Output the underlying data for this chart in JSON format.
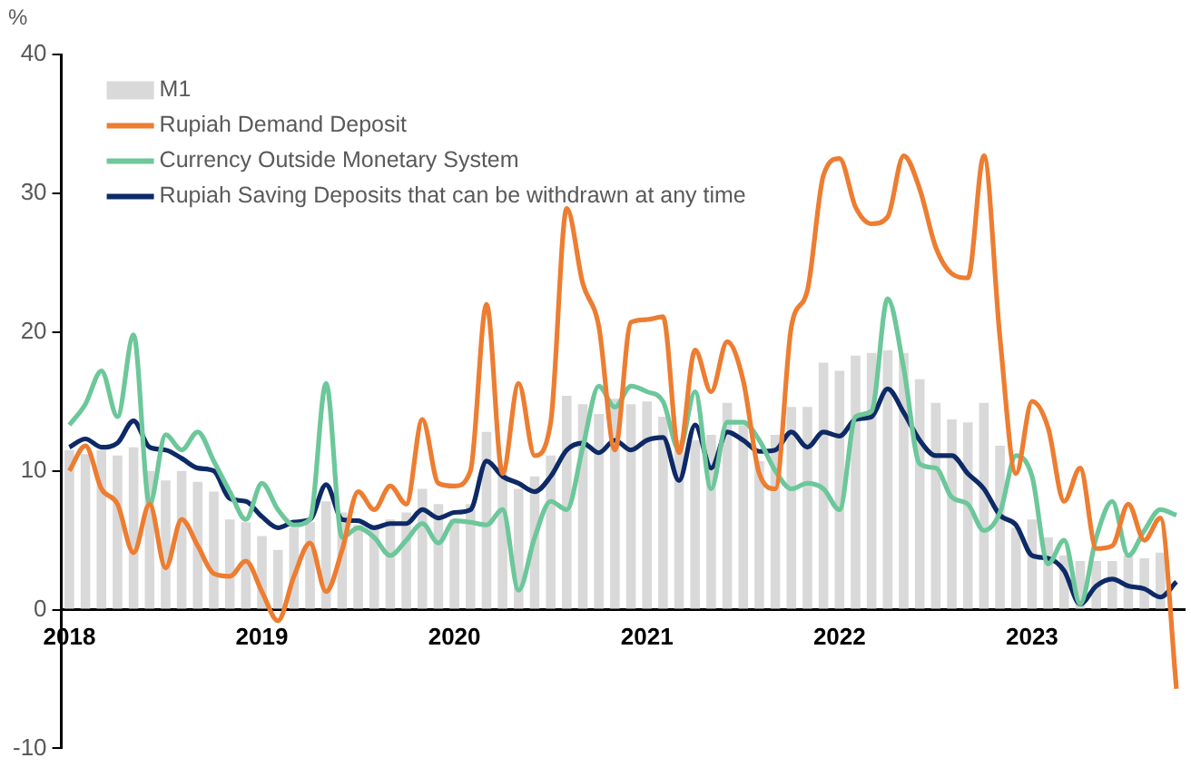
{
  "chart_data": {
    "type": "bar",
    "ylabel": "%",
    "legend": "top left",
    "grid": false,
    "categories": [
      "2018",
      null,
      null,
      null,
      null,
      null,
      null,
      null,
      null,
      null,
      null,
      null,
      "2019",
      null,
      null,
      null,
      null,
      null,
      null,
      null,
      null,
      null,
      null,
      null,
      "2020",
      null,
      null,
      null,
      null,
      null,
      null,
      null,
      null,
      null,
      null,
      null,
      "2021",
      null,
      null,
      null,
      null,
      null,
      null,
      null,
      null,
      null,
      null,
      null,
      "2022",
      null,
      null,
      null,
      null,
      null,
      null,
      null,
      null,
      null,
      null,
      null,
      "2023",
      null,
      null,
      null,
      null,
      null,
      null,
      null,
      null,
      null
    ],
    "ylim": [
      -10,
      40
    ],
    "yticks": [
      -10,
      0,
      10,
      20,
      30,
      40
    ],
    "series": [
      {
        "name": "M1",
        "color": "#d9d9d9",
        "values": [
          11.5,
          11.2,
          11.5,
          11.1,
          11.7,
          10.0,
          9.3,
          10.0,
          9.2,
          8.5,
          6.5,
          6.3,
          5.3,
          4.3,
          5.9,
          6.3,
          7.8,
          7.0,
          6.1,
          6.1,
          6.5,
          7.0,
          8.7,
          7.6,
          6.5,
          7.6,
          12.8,
          10.4,
          8.7,
          9.6,
          11.1,
          15.4,
          14.8,
          14.1,
          15.2,
          14.8,
          15.0,
          13.9,
          12.2,
          12.2,
          12.6,
          14.9,
          13.3,
          10.7,
          12.6,
          14.6,
          14.6,
          17.8,
          17.2,
          18.3,
          18.5,
          18.7,
          18.5,
          16.6,
          14.9,
          13.7,
          13.5,
          14.9,
          11.8,
          5.9,
          6.5,
          5.2,
          3.9,
          3.5,
          3.5,
          3.5,
          3.9,
          3.7,
          4.1,
          null
        ]
      },
      {
        "name": "Rupiah Demand Deposit",
        "type": "line",
        "color": "#ed7d31",
        "values": [
          10.0,
          11.8,
          8.7,
          7.6,
          4.1,
          7.6,
          3.0,
          6.5,
          4.6,
          2.6,
          2.4,
          3.5,
          1.3,
          -0.8,
          2.4,
          4.8,
          1.3,
          4.3,
          8.5,
          7.2,
          8.9,
          7.6,
          13.7,
          9.1,
          8.9,
          10.0,
          22.0,
          9.8,
          16.3,
          11.1,
          13.5,
          28.9,
          23.5,
          20.4,
          11.5,
          20.7,
          20.9,
          21.1,
          11.3,
          18.7,
          15.7,
          19.3,
          16.5,
          9.8,
          8.7,
          20.4,
          23.0,
          31.3,
          32.5,
          29.0,
          27.8,
          28.3,
          32.7,
          30.3,
          26.1,
          24.2,
          23.9,
          32.7,
          19.6,
          9.8,
          15.0,
          13.1,
          7.8,
          10.2,
          4.4,
          4.6,
          7.6,
          5.0,
          6.6,
          -5.7
        ]
      },
      {
        "name": "Currency Outside Monetary System",
        "type": "line",
        "color": "#6cc79a",
        "values": [
          13.3,
          14.8,
          17.2,
          13.9,
          19.8,
          7.6,
          12.6,
          11.5,
          12.8,
          10.7,
          8.5,
          6.5,
          9.1,
          7.2,
          6.1,
          6.5,
          16.3,
          5.2,
          5.9,
          5.2,
          3.9,
          5.0,
          6.2,
          4.8,
          6.4,
          6.3,
          6.1,
          7.2,
          1.4,
          5.2,
          7.8,
          7.2,
          11.7,
          16.1,
          14.6,
          16.1,
          15.7,
          15.0,
          11.5,
          15.7,
          8.7,
          13.5,
          13.5,
          12.2,
          10.0,
          8.7,
          9.1,
          8.7,
          7.2,
          13.9,
          14.3,
          22.4,
          17.4,
          10.5,
          10.2,
          8.1,
          7.6,
          5.7,
          7.0,
          11.1,
          9.6,
          3.3,
          5.0,
          0.4,
          5.2,
          7.8,
          3.9,
          5.7,
          7.2,
          6.8
        ]
      },
      {
        "name": "Rupiah Saving Deposits that can be withdrawn at any time",
        "type": "line",
        "color": "#0e2a66",
        "values": [
          11.7,
          12.3,
          11.7,
          12.0,
          13.6,
          11.7,
          11.5,
          10.9,
          10.2,
          10.0,
          8.0,
          7.8,
          6.7,
          5.9,
          6.3,
          6.5,
          9.0,
          6.5,
          6.4,
          5.9,
          6.2,
          6.2,
          7.2,
          6.6,
          7.0,
          7.2,
          10.7,
          9.6,
          9.1,
          8.5,
          9.6,
          11.5,
          12.0,
          11.3,
          12.2,
          11.5,
          12.2,
          12.4,
          9.3,
          13.3,
          10.2,
          12.8,
          12.2,
          11.4,
          11.5,
          12.8,
          11.7,
          12.8,
          12.5,
          13.7,
          13.9,
          15.9,
          14.2,
          12.2,
          11.1,
          11.1,
          9.8,
          8.7,
          6.8,
          6.1,
          3.9,
          3.7,
          2.8,
          0.4,
          1.7,
          2.2,
          1.7,
          1.5,
          0.9,
          2.0
        ]
      }
    ]
  }
}
